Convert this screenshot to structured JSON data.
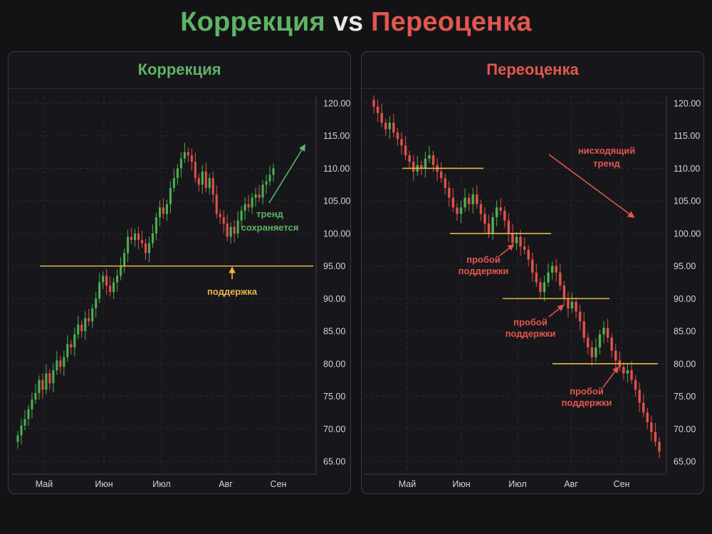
{
  "header": {
    "title_left": "Коррекция",
    "title_vs": "vs",
    "title_right": "Переоценка"
  },
  "colors": {
    "up": "#4caf50",
    "down": "#e0504a",
    "support": "#e8b54a",
    "green_text": "#5fb366",
    "red_text": "#e3564f",
    "background": "#131316"
  },
  "chart_data": [
    {
      "type": "candlestick",
      "title": "Коррекция",
      "months": [
        "Май",
        "Июн",
        "Июл",
        "Авг",
        "Сен"
      ],
      "y_ticks": [
        "120.00",
        "115.00",
        "110.00",
        "105.00",
        "100.00",
        "95.00",
        "90.00",
        "85.00",
        "80.00",
        "75.00",
        "70.00",
        "65.00"
      ],
      "ylim": [
        65,
        120
      ],
      "grid": true,
      "closes": [
        69.0,
        70.5,
        71.5,
        73.0,
        74.5,
        75.5,
        77.5,
        76.0,
        78.5,
        77.0,
        79.0,
        80.5,
        79.5,
        81.0,
        83.0,
        82.5,
        84.5,
        86.0,
        85.0,
        87.0,
        86.5,
        88.5,
        90.0,
        92.5,
        93.5,
        92.0,
        91.0,
        92.5,
        93.5,
        95.0,
        97.0,
        99.5,
        99.0,
        100.0,
        99.0,
        98.5,
        97.0,
        98.5,
        100.0,
        102.5,
        104.0,
        103.0,
        104.5,
        107.0,
        108.5,
        110.0,
        111.5,
        112.5,
        112.0,
        111.0,
        108.5,
        107.5,
        109.5,
        107.0,
        108.5,
        106.0,
        103.0,
        102.5,
        101.5,
        99.5,
        101.0,
        100.0,
        102.0,
        103.5,
        104.5,
        104.0,
        105.5,
        106.0,
        105.5,
        107.5,
        108.0,
        109.0,
        110.0
      ],
      "support": {
        "value": 95.0,
        "label": "поддержка"
      },
      "annotation": {
        "text": [
          "тренд",
          "сохраняется"
        ]
      }
    },
    {
      "type": "candlestick",
      "title": "Переоценка",
      "months": [
        "Май",
        "Июн",
        "Июл",
        "Авг",
        "Сен"
      ],
      "y_ticks": [
        "120.00",
        "115.00",
        "110.00",
        "105.00",
        "100.00",
        "95.00",
        "90.00",
        "85.00",
        "80.00",
        "75.00",
        "70.00",
        "65.00"
      ],
      "ylim": [
        65,
        120
      ],
      "grid": true,
      "closes": [
        119.5,
        118.5,
        117.0,
        116.0,
        117.0,
        115.5,
        114.5,
        113.5,
        112.0,
        111.0,
        109.5,
        110.5,
        110.0,
        111.5,
        112.0,
        110.5,
        109.5,
        108.5,
        107.0,
        105.5,
        104.0,
        103.0,
        104.0,
        105.5,
        104.5,
        106.0,
        104.5,
        103.0,
        101.5,
        100.0,
        102.5,
        104.0,
        103.5,
        102.0,
        100.0,
        98.5,
        99.5,
        98.0,
        97.5,
        96.0,
        94.0,
        92.5,
        91.0,
        92.5,
        94.0,
        95.0,
        94.0,
        92.0,
        90.0,
        88.5,
        89.5,
        88.0,
        86.5,
        84.0,
        82.5,
        81.0,
        82.5,
        84.5,
        85.5,
        84.0,
        82.0,
        80.5,
        79.5,
        78.5,
        79.0,
        77.5,
        76.0,
        74.0,
        72.5,
        71.0,
        69.5,
        68.0,
        66.5
      ],
      "supports": [
        110.0,
        100.0,
        90.0,
        80.0
      ],
      "breakdown_label": [
        "пробой",
        "поддержки"
      ],
      "trend_label": [
        "нисходящий",
        "тренд"
      ]
    }
  ]
}
